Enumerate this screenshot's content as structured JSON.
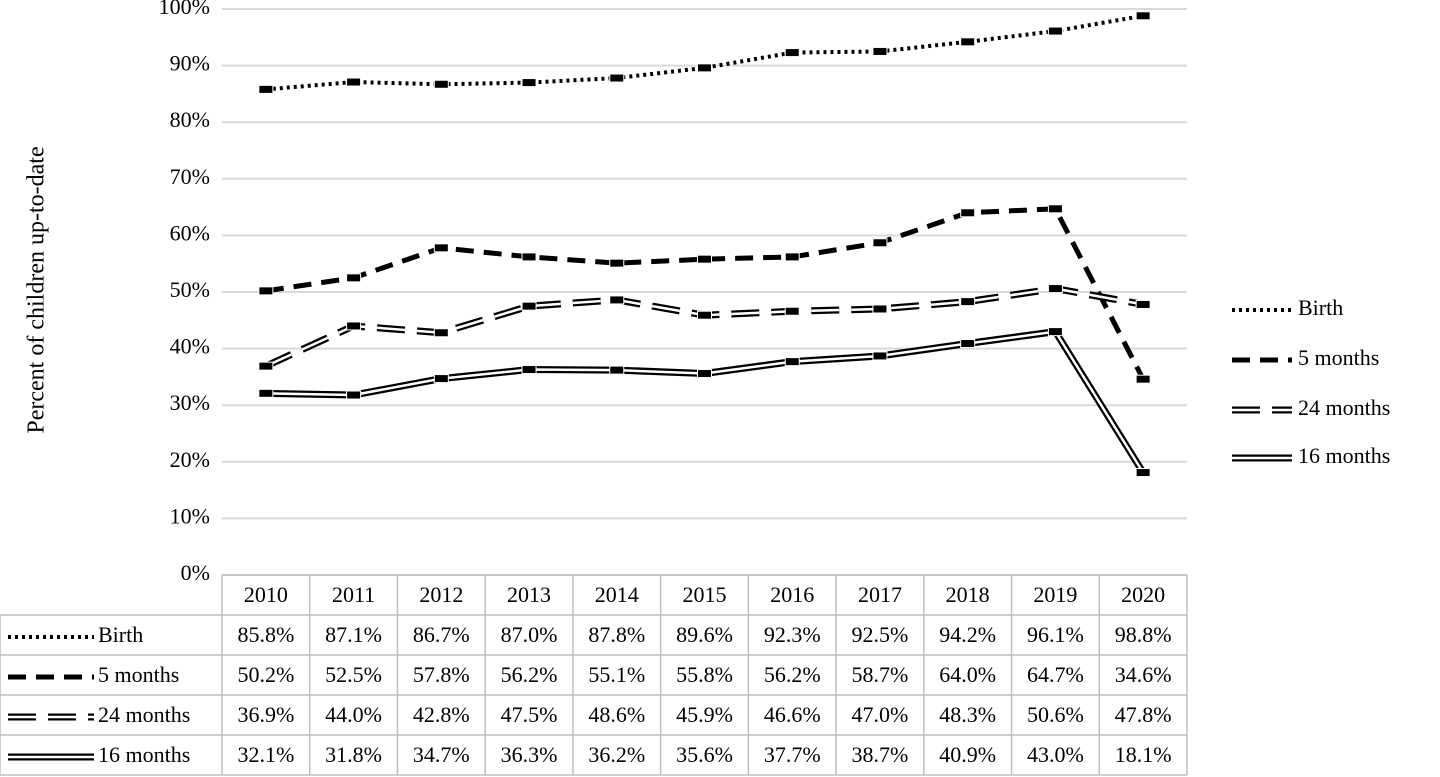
{
  "chart_data": {
    "type": "line",
    "y_label": "Percent of children up-to-date",
    "categories": [
      "2010",
      "2011",
      "2012",
      "2013",
      "2014",
      "2015",
      "2016",
      "2017",
      "2018",
      "2019",
      "2020"
    ],
    "series": [
      {
        "name": "Birth",
        "color": "#000000",
        "line_style": "dotted",
        "values": [
          85.8,
          87.1,
          86.7,
          87.0,
          87.8,
          89.6,
          92.3,
          92.5,
          94.2,
          96.1,
          98.8
        ],
        "value_labels": [
          "85.8%",
          "87.1%",
          "86.7%",
          "87.0%",
          "87.8%",
          "89.6%",
          "92.3%",
          "92.5%",
          "94.2%",
          "96.1%",
          "98.8%"
        ]
      },
      {
        "name": "5 months",
        "color": "#000000",
        "line_style": "dashed",
        "values": [
          50.2,
          52.5,
          57.8,
          56.2,
          55.1,
          55.8,
          56.2,
          58.7,
          64.0,
          64.7,
          34.6
        ],
        "value_labels": [
          "50.2%",
          "52.5%",
          "57.8%",
          "56.2%",
          "55.1%",
          "55.8%",
          "56.2%",
          "58.7%",
          "64.0%",
          "64.7%",
          "34.6%"
        ]
      },
      {
        "name": "24 months",
        "color": "#000000",
        "line_style": "double-dashed",
        "values": [
          36.9,
          44.0,
          42.8,
          47.5,
          48.6,
          45.9,
          46.6,
          47.0,
          48.3,
          50.6,
          47.8
        ],
        "value_labels": [
          "36.9%",
          "44.0%",
          "42.8%",
          "47.5%",
          "48.6%",
          "45.9%",
          "46.6%",
          "47.0%",
          "48.3%",
          "50.6%",
          "47.8%"
        ]
      },
      {
        "name": "16 months",
        "color": "#000000",
        "line_style": "double",
        "values": [
          32.1,
          31.8,
          34.7,
          36.3,
          36.2,
          35.6,
          37.7,
          38.7,
          40.9,
          43.0,
          18.1
        ],
        "value_labels": [
          "32.1%",
          "31.8%",
          "34.7%",
          "36.3%",
          "36.2%",
          "35.6%",
          "37.7%",
          "38.7%",
          "40.9%",
          "43.0%",
          "18.1%"
        ]
      }
    ],
    "ylim": [
      0,
      100
    ],
    "yticks": [
      {
        "value": 0,
        "label": "0%"
      },
      {
        "value": 10,
        "label": "10%"
      },
      {
        "value": 20,
        "label": "20%"
      },
      {
        "value": 30,
        "label": "30%"
      },
      {
        "value": 40,
        "label": "40%"
      },
      {
        "value": 50,
        "label": "50%"
      },
      {
        "value": 60,
        "label": "60%"
      },
      {
        "value": 70,
        "label": "70%"
      },
      {
        "value": 80,
        "label": "80%"
      },
      {
        "value": 90,
        "label": "90%"
      },
      {
        "value": 100,
        "label": "100%"
      }
    ],
    "grid": true,
    "legend": "right",
    "data_table": true
  }
}
